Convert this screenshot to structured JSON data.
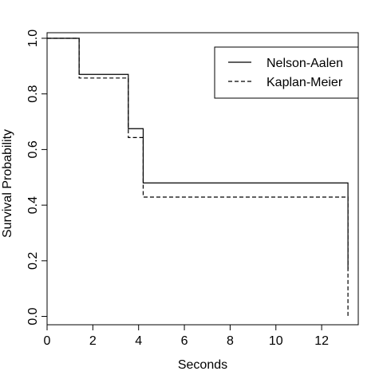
{
  "chart_data": {
    "type": "line",
    "step": true,
    "title": "",
    "xlabel": "Seconds",
    "ylabel": "Survival Probability",
    "xlim": [
      0,
      13.6
    ],
    "ylim": [
      -0.03,
      1.02
    ],
    "x_ticks": [
      0,
      2,
      4,
      6,
      8,
      10,
      12
    ],
    "y_ticks": [
      0.0,
      0.2,
      0.4,
      0.6,
      0.8,
      1.0
    ],
    "x_tick_labels": [
      "0",
      "2",
      "4",
      "6",
      "8",
      "10",
      "12"
    ],
    "y_tick_labels": [
      "0.0",
      "0.2",
      "0.4",
      "0.6",
      "0.8",
      "1.0"
    ],
    "grid": false,
    "legend_position": "top-right",
    "series": [
      {
        "name": "Nelson-Aalen",
        "line_style": "solid",
        "color": "#000000",
        "x": [
          0,
          1.4,
          3.55,
          4.2,
          13.15
        ],
        "y": [
          1.0,
          0.87,
          0.675,
          0.48,
          0.17
        ]
      },
      {
        "name": "Kaplan-Meier",
        "line_style": "dashed",
        "color": "#000000",
        "x": [
          0,
          1.4,
          3.55,
          4.2,
          13.15
        ],
        "y": [
          1.0,
          0.857,
          0.643,
          0.429,
          0.0
        ]
      }
    ]
  }
}
